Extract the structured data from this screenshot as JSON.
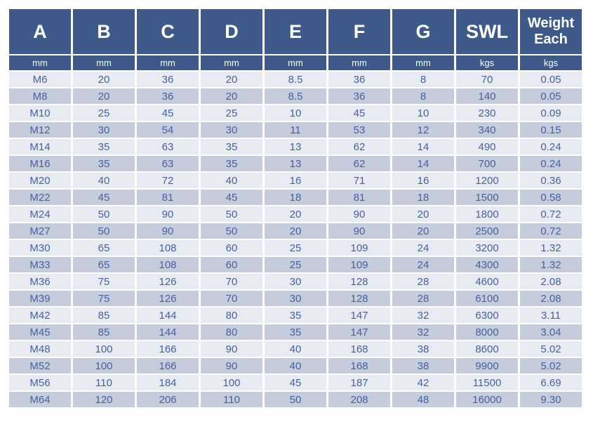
{
  "table": {
    "columns": [
      {
        "label": "A",
        "unit": "mm"
      },
      {
        "label": "B",
        "unit": "mm"
      },
      {
        "label": "C",
        "unit": "mm"
      },
      {
        "label": "D",
        "unit": "mm"
      },
      {
        "label": "E",
        "unit": "mm"
      },
      {
        "label": "F",
        "unit": "mm"
      },
      {
        "label": "G",
        "unit": "mm"
      },
      {
        "label": "SWL",
        "unit": "kgs"
      },
      {
        "label": "Weight Each",
        "unit": "kgs"
      }
    ],
    "rows": [
      [
        "M6",
        "20",
        "36",
        "20",
        "8.5",
        "36",
        "8",
        "70",
        "0.05"
      ],
      [
        "M8",
        "20",
        "36",
        "20",
        "8.5",
        "36",
        "8",
        "140",
        "0.05"
      ],
      [
        "M10",
        "25",
        "45",
        "25",
        "10",
        "45",
        "10",
        "230",
        "0.09"
      ],
      [
        "M12",
        "30",
        "54",
        "30",
        "11",
        "53",
        "12",
        "340",
        "0.15"
      ],
      [
        "M14",
        "35",
        "63",
        "35",
        "13",
        "62",
        "14",
        "490",
        "0.24"
      ],
      [
        "M16",
        "35",
        "63",
        "35",
        "13",
        "62",
        "14",
        "700",
        "0.24"
      ],
      [
        "M20",
        "40",
        "72",
        "40",
        "16",
        "71",
        "16",
        "1200",
        "0.36"
      ],
      [
        "M22",
        "45",
        "81",
        "45",
        "18",
        "81",
        "18",
        "1500",
        "0.58"
      ],
      [
        "M24",
        "50",
        "90",
        "50",
        "20",
        "90",
        "20",
        "1800",
        "0.72"
      ],
      [
        "M27",
        "50",
        "90",
        "50",
        "20",
        "90",
        "20",
        "2500",
        "0.72"
      ],
      [
        "M30",
        "65",
        "108",
        "60",
        "25",
        "109",
        "24",
        "3200",
        "1.32"
      ],
      [
        "M33",
        "65",
        "108",
        "60",
        "25",
        "109",
        "24",
        "4300",
        "1.32"
      ],
      [
        "M36",
        "75",
        "126",
        "70",
        "30",
        "128",
        "28",
        "4600",
        "2.08"
      ],
      [
        "M39",
        "75",
        "126",
        "70",
        "30",
        "128",
        "28",
        "6100",
        "2.08"
      ],
      [
        "M42",
        "85",
        "144",
        "80",
        "35",
        "147",
        "32",
        "6300",
        "3.11"
      ],
      [
        "M45",
        "85",
        "144",
        "80",
        "35",
        "147",
        "32",
        "8000",
        "3.04"
      ],
      [
        "M48",
        "100",
        "166",
        "90",
        "40",
        "168",
        "38",
        "8600",
        "5.02"
      ],
      [
        "M52",
        "100",
        "166",
        "90",
        "40",
        "168",
        "38",
        "9900",
        "5.02"
      ],
      [
        "M56",
        "110",
        "184",
        "100",
        "45",
        "187",
        "42",
        "11500",
        "6.69"
      ],
      [
        "M64",
        "120",
        "206",
        "110",
        "50",
        "208",
        "48",
        "16000",
        "9.30"
      ]
    ]
  },
  "colors": {
    "header_bg": "#3e5a8a",
    "header_text": "#ffffff",
    "row_light": "#e9ebf2",
    "row_dark": "#c5ccdc",
    "cell_text": "#46619e",
    "page_bg": "#ffffff"
  }
}
